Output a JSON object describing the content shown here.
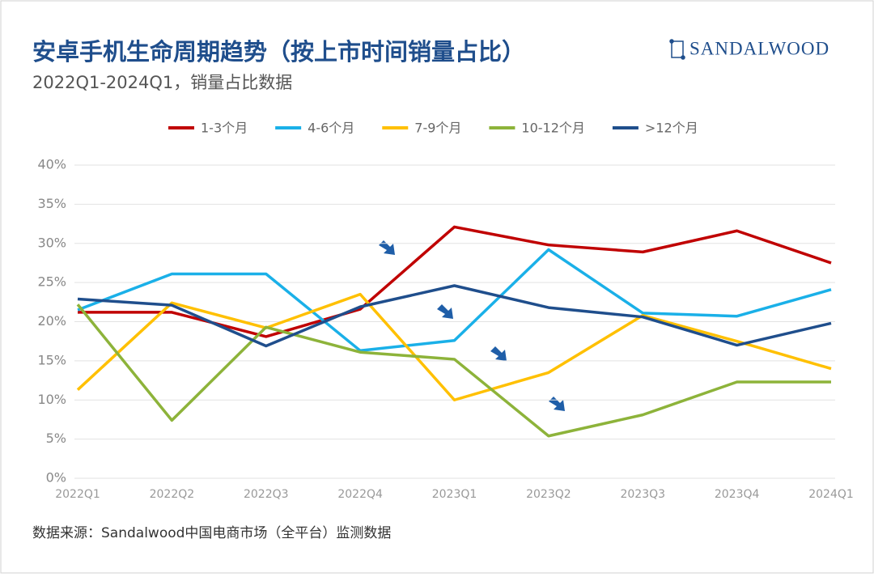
{
  "chart_data": {
    "type": "line",
    "title": "安卓手机生命周期趋势（按上市时间销量占比）",
    "subtitle": "2022Q1-2024Q1，销量占比数据",
    "brand": "SANDALWOOD",
    "source": "数据来源：Sandalwood中国电商市场（全平台）监测数据",
    "categories": [
      "2022Q1",
      "2022Q2",
      "2022Q3",
      "2022Q4",
      "2023Q1",
      "2023Q2",
      "2023Q3",
      "2023Q4",
      "2024Q1"
    ],
    "series": [
      {
        "name": "1-3个月",
        "color": "#c00000",
        "values": [
          21.2,
          21.2,
          18.1,
          21.6,
          32.1,
          29.8,
          28.9,
          31.6,
          27.5
        ]
      },
      {
        "name": "4-6个月",
        "color": "#1ab0e8",
        "values": [
          21.5,
          26.1,
          26.1,
          16.3,
          17.6,
          29.2,
          21.1,
          20.7,
          24.1
        ]
      },
      {
        "name": "7-9个月",
        "color": "#ffc000",
        "values": [
          11.3,
          22.4,
          19.2,
          23.5,
          10.0,
          13.5,
          20.8,
          17.5,
          14.0
        ]
      },
      {
        "name": "10-12个月",
        "color": "#8db33a",
        "values": [
          22.2,
          7.4,
          19.3,
          16.1,
          15.2,
          5.4,
          8.1,
          12.3,
          12.3
        ]
      },
      {
        "name": ">12个月",
        "color": "#1f4e8c",
        "values": [
          22.9,
          22.1,
          16.9,
          21.9,
          24.6,
          21.8,
          20.6,
          17.0,
          19.8
        ]
      }
    ],
    "ylim": [
      0,
      40
    ],
    "yticks": [
      {
        "value": 0,
        "label": "0%"
      },
      {
        "value": 5,
        "label": "5%"
      },
      {
        "value": 10,
        "label": "10%"
      },
      {
        "value": 15,
        "label": "15%"
      },
      {
        "value": 20,
        "label": "20%"
      },
      {
        "value": 25,
        "label": "25%"
      },
      {
        "value": 30,
        "label": "30%"
      },
      {
        "value": 35,
        "label": "35%"
      },
      {
        "value": 40,
        "label": "40%"
      }
    ],
    "grid": true
  }
}
